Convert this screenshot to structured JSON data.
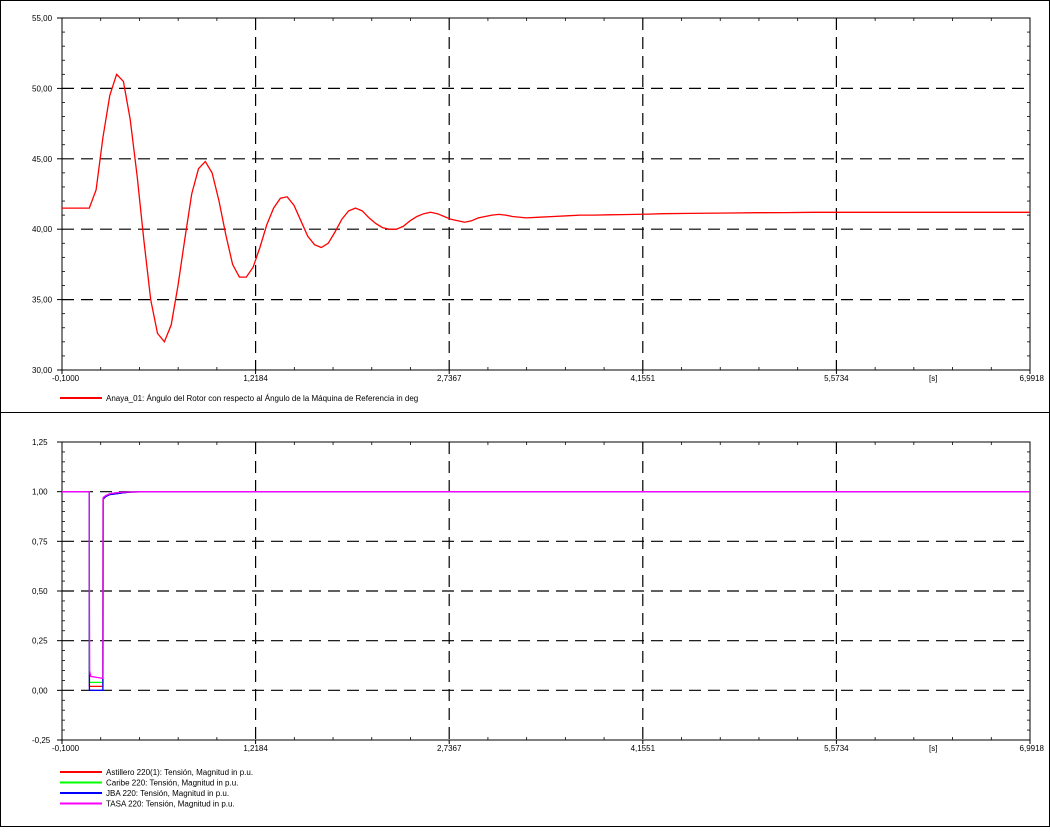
{
  "chart_data": [
    {
      "type": "line",
      "x_ticks": [
        "-0,1000",
        "1,2184",
        "2,7367",
        "4,1551",
        "5,5734",
        "6,9918"
      ],
      "x_unit": "[s]",
      "y_ticks": [
        "30,00",
        "35,00",
        "40,00",
        "45,00",
        "50,00",
        "55,00"
      ],
      "xlim": [
        -0.1,
        6.9918
      ],
      "ylim": [
        30,
        55
      ],
      "grid": true,
      "legend_position": "bottom-left",
      "series": [
        {
          "name": "Anaya_01: Ángulo del Rotor con respecto al Ángulo de la Máquina de Referencia in deg",
          "color": "#ff0000",
          "x": [
            -0.1,
            0.1,
            0.15,
            0.2,
            0.25,
            0.3,
            0.35,
            0.4,
            0.45,
            0.5,
            0.55,
            0.6,
            0.65,
            0.7,
            0.75,
            0.8,
            0.85,
            0.9,
            0.95,
            1.0,
            1.05,
            1.1,
            1.15,
            1.2,
            1.25,
            1.3,
            1.35,
            1.4,
            1.45,
            1.5,
            1.55,
            1.6,
            1.65,
            1.7,
            1.75,
            1.8,
            1.85,
            1.9,
            1.95,
            2.0,
            2.05,
            2.1,
            2.15,
            2.2,
            2.25,
            2.3,
            2.35,
            2.4,
            2.45,
            2.5,
            2.55,
            2.6,
            2.65,
            2.7,
            2.75,
            2.8,
            2.85,
            2.9,
            2.95,
            3.0,
            3.05,
            3.1,
            3.15,
            3.2,
            3.3,
            3.4,
            3.5,
            3.6,
            3.7,
            3.8,
            3.9,
            4.0,
            4.1,
            4.2,
            4.3,
            4.5,
            4.8,
            5.0,
            5.2,
            5.4,
            5.6,
            6.0,
            6.5,
            6.9918
          ],
          "y": [
            41.5,
            41.5,
            42.8,
            46.5,
            49.5,
            51.0,
            50.5,
            47.8,
            43.8,
            39.2,
            35.0,
            32.6,
            32.0,
            33.2,
            36.0,
            39.3,
            42.5,
            44.3,
            44.8,
            44.0,
            42.0,
            39.6,
            37.5,
            36.6,
            36.6,
            37.3,
            38.7,
            40.3,
            41.5,
            42.2,
            42.3,
            41.7,
            40.6,
            39.5,
            38.9,
            38.7,
            39.0,
            39.8,
            40.7,
            41.3,
            41.5,
            41.3,
            40.8,
            40.4,
            40.1,
            40.0,
            40.0,
            40.2,
            40.6,
            40.9,
            41.1,
            41.2,
            41.1,
            40.9,
            40.7,
            40.6,
            40.5,
            40.6,
            40.8,
            40.9,
            41.0,
            41.05,
            41.0,
            40.9,
            40.8,
            40.85,
            40.9,
            40.95,
            41.0,
            41.0,
            41.02,
            41.04,
            41.05,
            41.07,
            41.1,
            41.12,
            41.15,
            41.17,
            41.18,
            41.2,
            41.2,
            41.2,
            41.2,
            41.2
          ]
        }
      ]
    },
    {
      "type": "line",
      "x_ticks": [
        "-0,1000",
        "1,2184",
        "2,7367",
        "4,1551",
        "5,5734",
        "6,9918"
      ],
      "x_unit": "[s]",
      "y_ticks": [
        "-0,25",
        "0,00",
        "0,25",
        "0,50",
        "0,75",
        "1,00",
        "1,25"
      ],
      "xlim": [
        -0.1,
        6.9918
      ],
      "ylim": [
        -0.25,
        1.25
      ],
      "grid": true,
      "legend_position": "bottom-left",
      "series": [
        {
          "name": "Astillero 220(1): Tensión, Magnitud in p.u.",
          "color": "#ff0000",
          "x": [
            -0.1,
            0.1,
            0.101,
            0.2,
            0.201,
            0.22,
            0.25,
            0.3,
            0.35,
            0.4,
            0.5,
            6.9918
          ],
          "y": [
            1.0,
            1.0,
            0.02,
            0.02,
            0.96,
            0.975,
            0.985,
            0.99,
            0.995,
            0.998,
            1.0,
            1.0
          ]
        },
        {
          "name": "Caribe 220: Tensión, Magnitud in p.u.",
          "color": "#00ff00",
          "x": [
            -0.1,
            0.1,
            0.101,
            0.2,
            0.201,
            0.22,
            0.25,
            0.3,
            0.35,
            0.4,
            0.5,
            6.9918
          ],
          "y": [
            1.0,
            1.0,
            0.04,
            0.04,
            0.965,
            0.98,
            0.99,
            0.995,
            0.998,
            0.999,
            1.0,
            1.0
          ]
        },
        {
          "name": "JBA 220: Tensión, Magnitud in p.u.",
          "color": "#0000ff",
          "x": [
            -0.1,
            0.1,
            0.101,
            0.2,
            0.201,
            0.22,
            0.25,
            0.3,
            0.35,
            0.4,
            0.5,
            6.9918
          ],
          "y": [
            1.0,
            1.0,
            0.0,
            0.0,
            0.965,
            0.975,
            0.985,
            0.99,
            0.995,
            0.998,
            1.0,
            1.0
          ]
        },
        {
          "name": "TASA 220: Tensión, Magnitud in p.u.",
          "color": "#ff00ff",
          "x": [
            -0.1,
            0.1,
            0.101,
            0.102,
            0.11,
            0.2,
            0.201,
            0.22,
            0.25,
            0.3,
            0.35,
            0.4,
            0.5,
            6.9918
          ],
          "y": [
            1.0,
            1.0,
            0.5,
            0.1,
            0.07,
            0.06,
            0.97,
            0.98,
            0.99,
            0.995,
            0.998,
            0.999,
            1.0,
            1.0
          ]
        }
      ]
    }
  ]
}
